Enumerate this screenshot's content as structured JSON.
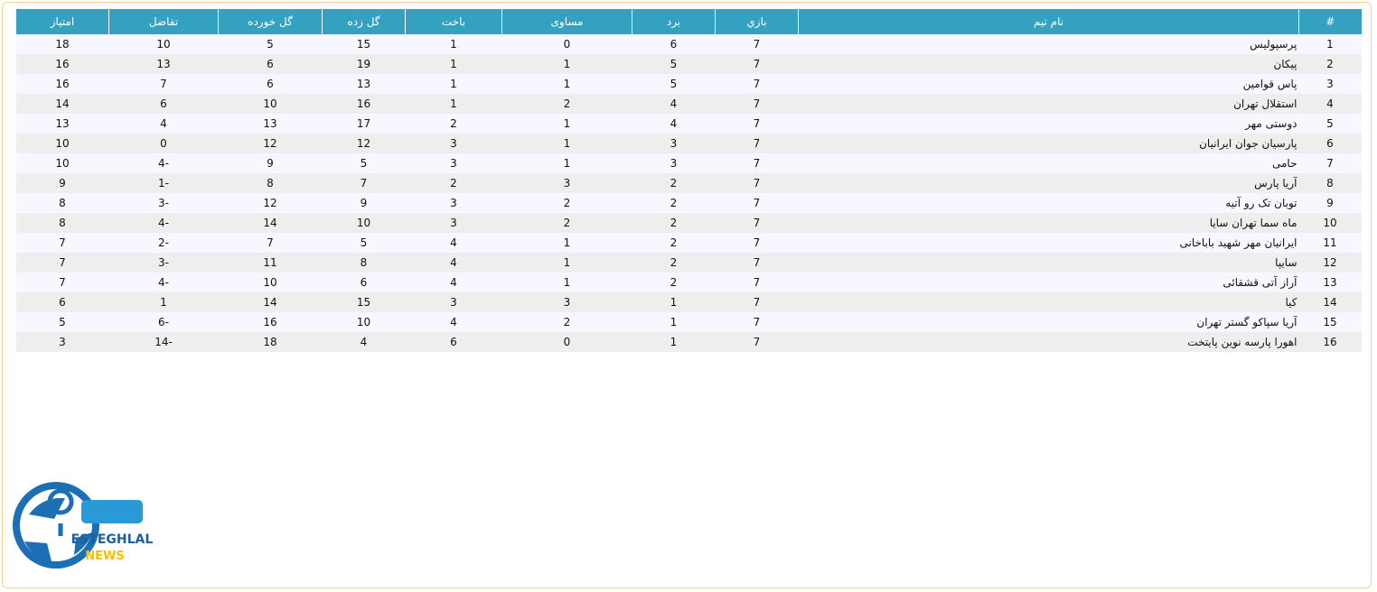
{
  "table": {
    "header": [
      "#",
      "نام تیم",
      "بازي",
      "برد",
      "مساوی",
      "باخت",
      "گل زده",
      "گل خورده",
      "تفاضل",
      "امتیاز"
    ],
    "rows": [
      [
        1,
        "پرسپولیس",
        7,
        6,
        0,
        1,
        15,
        5,
        10,
        18
      ],
      [
        2,
        "پیکان",
        7,
        5,
        1,
        1,
        19,
        6,
        13,
        16
      ],
      [
        3,
        "پاس قوامین",
        7,
        5,
        1,
        1,
        13,
        6,
        7,
        16
      ],
      [
        4,
        "استقلال تهران",
        7,
        4,
        2,
        1,
        16,
        10,
        6,
        14
      ],
      [
        5,
        "دوستی مهر",
        7,
        4,
        1,
        2,
        17,
        13,
        4,
        13
      ],
      [
        6,
        "پارسیان جوان ایرانیان",
        7,
        3,
        1,
        3,
        12,
        12,
        0,
        10
      ],
      [
        7,
        "حامی",
        7,
        3,
        1,
        3,
        5,
        9,
        -4,
        10
      ],
      [
        8,
        "آریا پارس",
        7,
        2,
        3,
        2,
        7,
        8,
        -1,
        9
      ],
      [
        9,
        "توبان تک رو آتیه",
        7,
        2,
        2,
        3,
        9,
        12,
        -3,
        8
      ],
      [
        10,
        "ماه سما تهران سایا",
        7,
        2,
        2,
        3,
        10,
        14,
        -4,
        8
      ],
      [
        11,
        "ایرانیان مهر شهید باباخانی",
        7,
        2,
        1,
        4,
        5,
        7,
        -2,
        7
      ],
      [
        12,
        "سایپا",
        7,
        2,
        1,
        4,
        8,
        11,
        -3,
        7
      ],
      [
        13,
        "آراز آتی قشقائی",
        7,
        2,
        1,
        4,
        6,
        10,
        -4,
        7
      ],
      [
        14,
        "کیا",
        7,
        1,
        3,
        3,
        15,
        14,
        1,
        6
      ],
      [
        15,
        "آریا سپاکو گستر تهران",
        7,
        1,
        2,
        4,
        10,
        16,
        -6,
        5
      ],
      [
        16,
        "اهورا پارسه نوین پایتخت",
        7,
        1,
        0,
        6,
        4,
        18,
        -14,
        3
      ]
    ]
  },
  "logo": {
    "name": "ESTEGHLAL",
    "tagline": "NEWS"
  }
}
